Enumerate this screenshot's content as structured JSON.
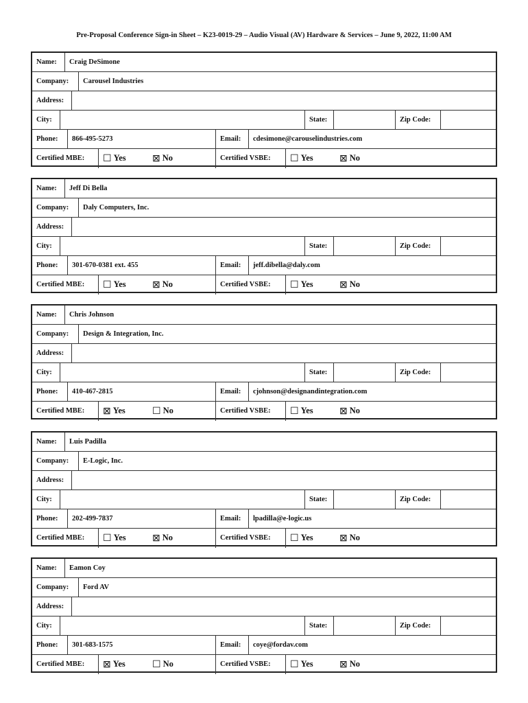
{
  "title": "Pre-Proposal Conference Sign-in Sheet – K23-0019-29 – Audio Visual (AV) Hardware & Services – June 9, 2022, 11:00 AM",
  "labels": {
    "name": "Name:",
    "company": "Company:",
    "address": "Address:",
    "city": "City:",
    "state": "State:",
    "zip": "Zip Code:",
    "phone": "Phone:",
    "email": "Email:",
    "mbe": "Certified MBE:",
    "vsbe": "Certified VSBE:",
    "yes": "Yes",
    "no": "No",
    "checked": "⊠",
    "unchecked": "☐"
  },
  "entries": [
    {
      "name": "Craig DeSimone",
      "company": "Carousel Industries",
      "address": "",
      "city": "",
      "state": "",
      "zip": "",
      "phone": "866-495-5273",
      "email": "cdesimone@carouselindustries.com",
      "mbe": false,
      "vsbe": false
    },
    {
      "name": "Jeff Di Bella",
      "company": "Daly Computers, Inc.",
      "address": "",
      "city": "",
      "state": "",
      "zip": "",
      "phone": "301-670-0381 ext. 455",
      "email": "jeff.dibella@daly.com",
      "mbe": false,
      "vsbe": false
    },
    {
      "name": "Chris Johnson",
      "company": "Design & Integration, Inc.",
      "address": "",
      "city": "",
      "state": "",
      "zip": "",
      "phone": "410-467-2815",
      "email": "cjohnson@designandintegration.com",
      "mbe": true,
      "vsbe": false
    },
    {
      "name": "Luis Padilla",
      "company": "E-Logic, Inc.",
      "address": "",
      "city": "",
      "state": "",
      "zip": "",
      "phone": "202-499-7837",
      "email": "lpadilla@e-logic.us",
      "mbe": false,
      "vsbe": false
    },
    {
      "name": "Eamon Coy",
      "company": "Ford AV",
      "address": "",
      "city": "",
      "state": "",
      "zip": "",
      "phone": "301-683-1575",
      "email": "coye@fordav.com",
      "mbe": true,
      "vsbe": false
    }
  ]
}
